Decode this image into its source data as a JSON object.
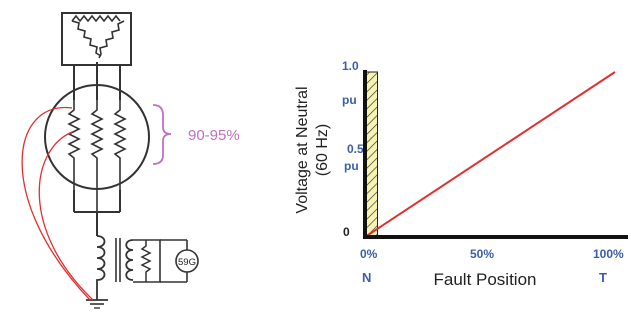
{
  "bracket_label": "90-95%",
  "relay_label": "59G",
  "chart": {
    "ylabel_line1": "Voltage at Neutral",
    "ylabel_line2": "(60 Hz)",
    "xlabel": "Fault Position",
    "yticks": [
      "1.0",
      "pu",
      "0.5",
      "pu",
      "0"
    ],
    "xticks": [
      "0%",
      "50%",
      "100%"
    ],
    "xends": [
      "N",
      "T"
    ]
  },
  "chart_data": {
    "type": "line",
    "x": [
      0,
      100
    ],
    "series": [
      {
        "values": [
          0,
          1.0
        ]
      }
    ],
    "xlim": [
      0,
      100
    ],
    "ylim": [
      0,
      1.0
    ],
    "shaded_region": {
      "x_from": 0,
      "x_to": 5
    }
  },
  "colors": {
    "line": "#e03030",
    "tick_label": "#3a5fa8",
    "bracket": "#c070c0",
    "hatch_fill": "#f7f3b0"
  }
}
